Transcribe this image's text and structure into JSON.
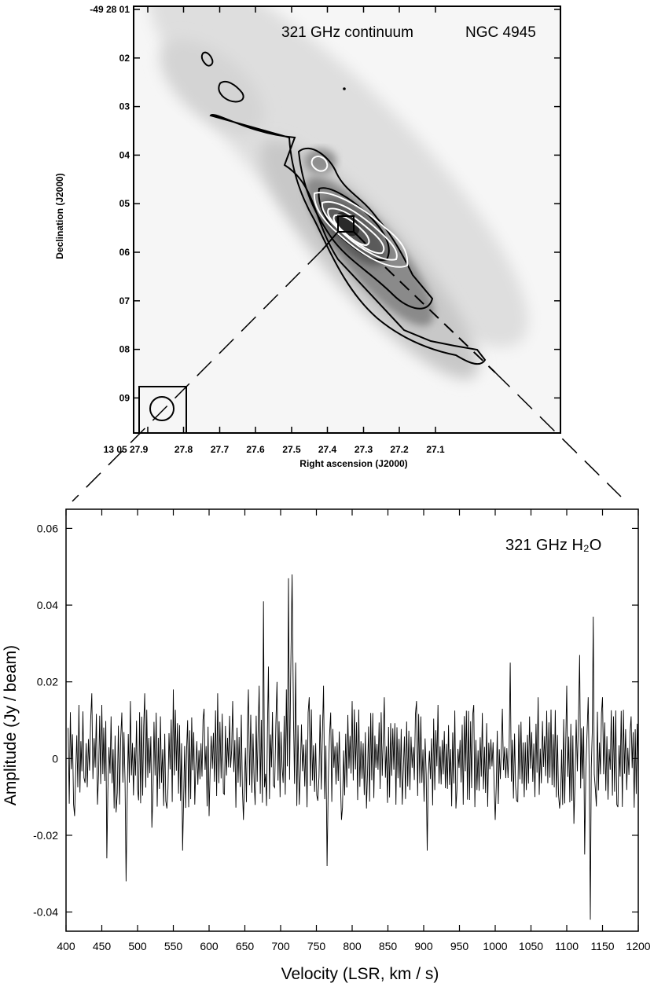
{
  "chart_data": [
    {
      "type": "heatmap",
      "title": "321 GHz continuum",
      "object": "NGC 4945",
      "xlabel": "Right ascension (J2000)",
      "ylabel": "Declination (J2000)",
      "x_ticks": [
        "13 05 27.9",
        "27.8",
        "27.7",
        "27.6",
        "27.5",
        "27.4",
        "27.3",
        "27.2",
        "27.1"
      ],
      "y_ticks": [
        "-49 28 01",
        "02",
        "03",
        "04",
        "05",
        "06",
        "07",
        "08",
        "09"
      ],
      "colormap": "grayscale",
      "contours": {
        "black": 3,
        "white": 4
      },
      "features": [
        "elongated emission ridge along position angle ~45 deg",
        "compact peak at RA 27.47s, Dec -49 28 05.4",
        "synthesized beam in lower-left corner"
      ]
    },
    {
      "type": "line",
      "label": "321 GHz H₂O",
      "xlabel": "Velocity (LSR, km / s)",
      "ylabel": "Amplitude (Jy / beam)",
      "xlim": [
        400,
        1200
      ],
      "ylim": [
        -0.045,
        0.065
      ],
      "x_ticks": [
        400,
        450,
        500,
        550,
        600,
        650,
        700,
        750,
        800,
        850,
        900,
        950,
        1000,
        1050,
        1100,
        1150,
        1200
      ],
      "y_ticks": [
        -0.04,
        -0.02,
        0,
        0.02,
        0.04,
        0.06
      ],
      "y_tick_labels": [
        "-0.04",
        "-0.02",
        "0",
        "0.02",
        "0.04",
        "0.06"
      ],
      "series": [
        {
          "x": [
            403,
            412,
            418,
            425,
            436,
            444,
            450,
            457,
            463,
            470,
            478,
            484,
            490,
            500,
            510,
            520,
            532,
            541,
            550,
            563,
            570,
            580,
            593,
            600,
            612,
            620,
            633,
            648,
            655,
            663,
            670,
            676,
            679,
            683,
            690,
            695,
            702,
            708,
            711,
            714,
            716,
            718,
            721,
            726,
            740,
            752,
            760,
            765,
            770,
            785,
            800,
            820,
            845,
            870,
            890,
            905,
            920,
            945,
            970,
            1000,
            1010,
            1021,
            1030,
            1060,
            1090,
            1100,
            1110,
            1118,
            1125,
            1130,
            1133,
            1137,
            1140,
            1150,
            1170,
            1190,
            1200
          ],
          "y": [
            0.008,
            -0.015,
            0.014,
            -0.005,
            0.017,
            -0.012,
            0.014,
            -0.026,
            0.011,
            -0.014,
            0.012,
            -0.032,
            0.015,
            -0.008,
            0.017,
            -0.018,
            0.011,
            -0.013,
            0.018,
            -0.024,
            0.01,
            -0.012,
            0.013,
            -0.015,
            0.017,
            -0.009,
            0.015,
            -0.016,
            0.018,
            -0.006,
            0.019,
            0.041,
            -0.004,
            0.024,
            -0.007,
            0.02,
            -0.002,
            0.018,
            0.047,
            0.02,
            0.048,
            0.01,
            0.025,
            -0.012,
            0.016,
            -0.011,
            0.019,
            -0.028,
            0.012,
            -0.016,
            0.015,
            -0.013,
            0.016,
            -0.012,
            0.015,
            -0.024,
            0.014,
            -0.013,
            0.014,
            -0.016,
            0.013,
            0.025,
            -0.011,
            0.016,
            -0.013,
            0.019,
            -0.017,
            0.027,
            -0.025,
            0.016,
            -0.042,
            0.037,
            -0.008,
            0.016,
            -0.012,
            0.011,
            -0.004
          ]
        }
      ]
    }
  ]
}
